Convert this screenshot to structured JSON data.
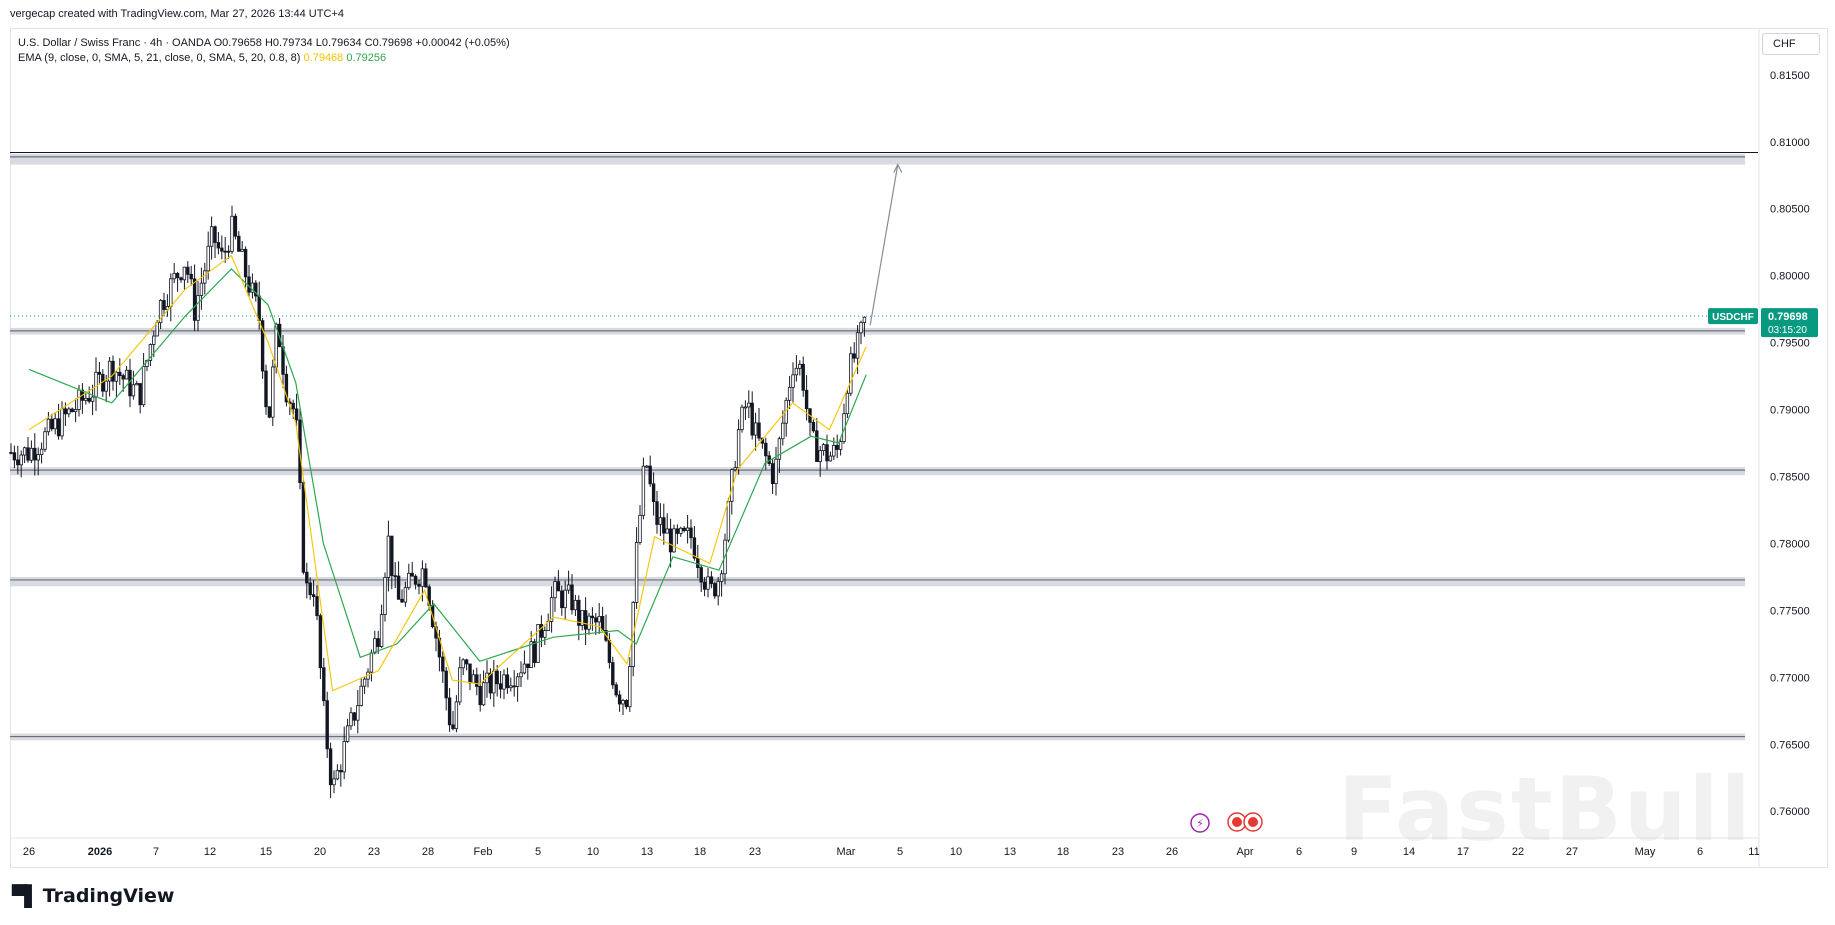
{
  "header": {
    "credit": "vergecap created with TradingView.com, Mar 27, 2026 13:44 UTC+4"
  },
  "legend": {
    "line1": "U.S. Dollar / Swiss Franc · 4h · OANDA  O0.79658  H0.79734  L0.79634  C0.79698  +0.00042 (+0.05%)",
    "line2_prefix": "EMA (9, close, 0, SMA, 5, 21, close, 0, SMA, 5, 20, 0.8, 8)",
    "ema_fast_value": "0.79468",
    "ema_slow_value": "0.79256"
  },
  "currency_button": "CHF",
  "price_tag": {
    "symbol": "USDCHF",
    "price": "0.79698",
    "countdown": "03:15:20"
  },
  "colors": {
    "bull": "#26a69a",
    "bear": "#ef5350",
    "candle": "#131722",
    "ema_fast": "#f5c400",
    "ema_slow": "#2ea84f",
    "accent": "#089981",
    "zone": "#d1d4dc"
  },
  "branding": {
    "logo": "TradingView",
    "watermark": "FastBull"
  },
  "chart_data": {
    "type": "candlestick",
    "symbol": "USDCHF",
    "timeframe": "4h",
    "y_range": [
      0.758,
      0.8185
    ],
    "y_ticks": [
      "0.81500",
      "0.81000",
      "0.80500",
      "0.80000",
      "0.79500",
      "0.79000",
      "0.78500",
      "0.78000",
      "0.77500",
      "0.77000",
      "0.76500",
      "0.76000"
    ],
    "x_ticks": [
      "26",
      "2026",
      "7",
      "12",
      "15",
      "20",
      "23",
      "28",
      "Feb",
      "5",
      "10",
      "13",
      "18",
      "23",
      "Mar",
      "5",
      "10",
      "13",
      "18",
      "23",
      "26",
      "Apr",
      "6",
      "9",
      "14",
      "17",
      "22",
      "27",
      "May",
      "6",
      "11"
    ],
    "zones": [
      {
        "top": 0.8091,
        "bottom": 0.8083
      },
      {
        "top": 0.7961,
        "bottom": 0.7956
      },
      {
        "top": 0.7857,
        "bottom": 0.7851
      },
      {
        "top": 0.7775,
        "bottom": 0.7768
      },
      {
        "top": 0.7658,
        "bottom": 0.7653
      }
    ],
    "resistance_line": 0.8092,
    "current_price_line": 0.79698,
    "projection": {
      "from_date": "Mar 27",
      "from": 0.7963,
      "to_date": "Mar 30",
      "to": 0.8083
    },
    "price_path": [
      {
        "date": "Dec 26",
        "price": 0.7868
      },
      {
        "date": "Jan 2",
        "price": 0.7915
      },
      {
        "date": "Jan 4",
        "price": 0.7933
      },
      {
        "date": "Jan 7",
        "price": 0.791
      },
      {
        "date": "Jan 9",
        "price": 0.7975
      },
      {
        "date": "Jan 12",
        "price": 0.8012
      },
      {
        "date": "Jan 13",
        "price": 0.7975
      },
      {
        "date": "Jan 15",
        "price": 0.803
      },
      {
        "date": "Jan 16",
        "price": 0.8012
      },
      {
        "date": "Jan 17",
        "price": 0.8035
      },
      {
        "date": "Jan 20",
        "price": 0.797
      },
      {
        "date": "Jan 21",
        "price": 0.7888
      },
      {
        "date": "Jan 22",
        "price": 0.7965
      },
      {
        "date": "Jan 23",
        "price": 0.7915
      },
      {
        "date": "Jan 24",
        "price": 0.7895
      },
      {
        "date": "Jan 25",
        "price": 0.7765
      },
      {
        "date": "Jan 26",
        "price": 0.7768
      },
      {
        "date": "Jan 27",
        "price": 0.7675
      },
      {
        "date": "Jan 28",
        "price": 0.7615
      },
      {
        "date": "Jan 30",
        "price": 0.7665
      },
      {
        "date": "Feb 2",
        "price": 0.7735
      },
      {
        "date": "Feb 3",
        "price": 0.7805
      },
      {
        "date": "Feb 4",
        "price": 0.7755
      },
      {
        "date": "Feb 6",
        "price": 0.7775
      },
      {
        "date": "Feb 7",
        "price": 0.7782
      },
      {
        "date": "Feb 9",
        "price": 0.77
      },
      {
        "date": "Feb 10",
        "price": 0.7658
      },
      {
        "date": "Feb 11",
        "price": 0.771
      },
      {
        "date": "Feb 13",
        "price": 0.769
      },
      {
        "date": "Feb 17",
        "price": 0.7705
      },
      {
        "date": "Feb 19",
        "price": 0.7722
      },
      {
        "date": "Feb 21",
        "price": 0.7762
      },
      {
        "date": "Feb 23",
        "price": 0.7758
      },
      {
        "date": "Feb 24",
        "price": 0.774
      },
      {
        "date": "Feb 26",
        "price": 0.774
      },
      {
        "date": "Feb 28",
        "price": 0.7688
      },
      {
        "date": "Mar 1",
        "price": 0.7685
      },
      {
        "date": "Mar 2",
        "price": 0.779
      },
      {
        "date": "Mar 3",
        "price": 0.7865
      },
      {
        "date": "Mar 4",
        "price": 0.782
      },
      {
        "date": "Mar 6",
        "price": 0.78
      },
      {
        "date": "Mar 8",
        "price": 0.7805
      },
      {
        "date": "Mar 10",
        "price": 0.7762
      },
      {
        "date": "Mar 11",
        "price": 0.7775
      },
      {
        "date": "Mar 12",
        "price": 0.7822
      },
      {
        "date": "Mar 13",
        "price": 0.788
      },
      {
        "date": "Mar 14",
        "price": 0.7905
      },
      {
        "date": "Mar 15",
        "price": 0.788
      },
      {
        "date": "Mar 17",
        "price": 0.785
      },
      {
        "date": "Mar 19",
        "price": 0.7935
      },
      {
        "date": "Mar 20",
        "price": 0.793
      },
      {
        "date": "Mar 21",
        "price": 0.7875
      },
      {
        "date": "Mar 23",
        "price": 0.7865
      },
      {
        "date": "Mar 24",
        "price": 0.787
      },
      {
        "date": "Mar 25",
        "price": 0.7925
      },
      {
        "date": "Mar 26",
        "price": 0.7945
      },
      {
        "date": "Mar 27",
        "price": 0.797
      }
    ],
    "ema_fast_path": [
      {
        "date": "Dec 26",
        "price": 0.7885
      },
      {
        "date": "Jan 4",
        "price": 0.7925
      },
      {
        "date": "Jan 12",
        "price": 0.799
      },
      {
        "date": "Jan 17",
        "price": 0.8015
      },
      {
        "date": "Jan 21",
        "price": 0.795
      },
      {
        "date": "Jan 24",
        "price": 0.789
      },
      {
        "date": "Jan 26",
        "price": 0.779
      },
      {
        "date": "Jan 28",
        "price": 0.769
      },
      {
        "date": "Feb 2",
        "price": 0.7705
      },
      {
        "date": "Feb 7",
        "price": 0.7765
      },
      {
        "date": "Feb 10",
        "price": 0.7698
      },
      {
        "date": "Feb 13",
        "price": 0.7695
      },
      {
        "date": "Feb 21",
        "price": 0.7745
      },
      {
        "date": "Feb 26",
        "price": 0.7738
      },
      {
        "date": "Mar 1",
        "price": 0.771
      },
      {
        "date": "Mar 4",
        "price": 0.7805
      },
      {
        "date": "Mar 10",
        "price": 0.7785
      },
      {
        "date": "Mar 13",
        "price": 0.7855
      },
      {
        "date": "Mar 19",
        "price": 0.7905
      },
      {
        "date": "Mar 23",
        "price": 0.7885
      },
      {
        "date": "Mar 27",
        "price": 0.7947
      }
    ],
    "ema_slow_path": [
      {
        "date": "Dec 26",
        "price": 0.793
      },
      {
        "date": "Jan 4",
        "price": 0.7905
      },
      {
        "date": "Jan 12",
        "price": 0.797
      },
      {
        "date": "Jan 17",
        "price": 0.8005
      },
      {
        "date": "Jan 21",
        "price": 0.7978
      },
      {
        "date": "Jan 24",
        "price": 0.792
      },
      {
        "date": "Jan 27",
        "price": 0.78
      },
      {
        "date": "Jan 31",
        "price": 0.7715
      },
      {
        "date": "Feb 4",
        "price": 0.7725
      },
      {
        "date": "Feb 8",
        "price": 0.7755
      },
      {
        "date": "Feb 13",
        "price": 0.7712
      },
      {
        "date": "Feb 21",
        "price": 0.773
      },
      {
        "date": "Feb 28",
        "price": 0.7735
      },
      {
        "date": "Mar 2",
        "price": 0.7725
      },
      {
        "date": "Mar 6",
        "price": 0.779
      },
      {
        "date": "Mar 11",
        "price": 0.778
      },
      {
        "date": "Mar 16",
        "price": 0.786
      },
      {
        "date": "Mar 21",
        "price": 0.788
      },
      {
        "date": "Mar 24",
        "price": 0.7875
      },
      {
        "date": "Mar 27",
        "price": 0.7926
      }
    ]
  }
}
